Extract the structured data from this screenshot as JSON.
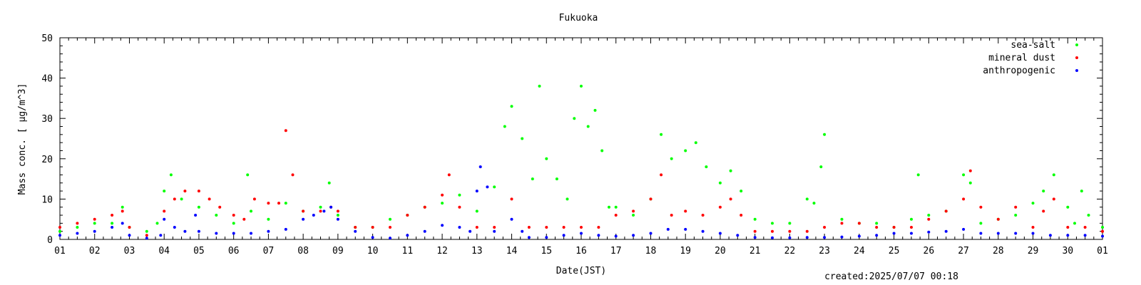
{
  "chart_data": {
    "type": "scatter",
    "title": "Fukuoka",
    "xlabel": "Date(JST)",
    "ylabel": "Mass conc. [ μg/m^3]",
    "footer": "created:2025/07/07 00:18",
    "xlim": [
      1,
      31
    ],
    "ylim": [
      0,
      50
    ],
    "grid": false,
    "legend_position": "top-right",
    "x_tick_labels": [
      "01",
      "02",
      "03",
      "04",
      "05",
      "06",
      "07",
      "08",
      "09",
      "10",
      "11",
      "12",
      "13",
      "14",
      "15",
      "16",
      "17",
      "18",
      "19",
      "20",
      "21",
      "22",
      "23",
      "24",
      "25",
      "26",
      "27",
      "28",
      "29",
      "30",
      "01"
    ],
    "y_ticks": [
      0,
      10,
      20,
      30,
      40,
      50
    ],
    "series": [
      {
        "name": "sea-salt",
        "color": "#00ff00",
        "x": [
          1.0,
          1.5,
          2.0,
          2.5,
          2.8,
          3.0,
          3.5,
          3.8,
          4.0,
          4.2,
          4.5,
          5.0,
          5.5,
          6.0,
          6.4,
          6.5,
          7.0,
          7.5,
          8.0,
          8.5,
          8.75,
          9.0,
          9.5,
          10.0,
          10.5,
          11.0,
          11.5,
          12.0,
          12.5,
          13.0,
          13.5,
          13.8,
          14.0,
          14.3,
          14.6,
          14.8,
          15.0,
          15.3,
          15.6,
          15.8,
          16.0,
          16.2,
          16.4,
          16.6,
          16.8,
          17.0,
          17.5,
          18.0,
          18.3,
          18.6,
          19.0,
          19.3,
          19.6,
          20.0,
          20.3,
          20.6,
          21.0,
          21.5,
          22.0,
          22.5,
          22.7,
          22.9,
          23.0,
          23.5,
          24.0,
          24.5,
          25.0,
          25.5,
          25.7,
          26.0,
          26.5,
          27.0,
          27.2,
          27.5,
          28.0,
          28.5,
          29.0,
          29.3,
          29.6,
          30.0,
          30.2,
          30.4,
          30.6,
          31.0
        ],
        "y": [
          2,
          3,
          4,
          4,
          8,
          3,
          2,
          4,
          12,
          16,
          10,
          8,
          6,
          4,
          16,
          7,
          5,
          9,
          7,
          8,
          14,
          6,
          3,
          3,
          5,
          6,
          8,
          9,
          11,
          7,
          13,
          28,
          33,
          25,
          15,
          38,
          20,
          15,
          10,
          30,
          38,
          28,
          32,
          22,
          8,
          8,
          6,
          10,
          26,
          20,
          22,
          24,
          18,
          14,
          17,
          12,
          5,
          4,
          4,
          10,
          9,
          18,
          26,
          5,
          4,
          4,
          3,
          5,
          16,
          6,
          7,
          16,
          14,
          4,
          5,
          6,
          9,
          12,
          16,
          8,
          4,
          12,
          6,
          3
        ]
      },
      {
        "name": "mineral dust",
        "color": "#ff0000",
        "x": [
          1.0,
          1.5,
          2.0,
          2.5,
          2.8,
          3.0,
          3.5,
          4.0,
          4.3,
          4.6,
          5.0,
          5.3,
          5.6,
          6.0,
          6.3,
          6.6,
          7.0,
          7.3,
          7.5,
          7.7,
          8.0,
          8.5,
          8.8,
          9.0,
          9.5,
          10.0,
          10.5,
          11.0,
          11.5,
          12.0,
          12.2,
          12.5,
          13.0,
          13.5,
          14.0,
          14.5,
          15.0,
          15.5,
          16.0,
          16.5,
          17.0,
          17.5,
          18.0,
          18.3,
          18.6,
          19.0,
          19.5,
          20.0,
          20.3,
          20.6,
          21.0,
          21.5,
          22.0,
          22.5,
          23.0,
          23.5,
          24.0,
          24.5,
          25.0,
          25.5,
          26.0,
          26.5,
          27.0,
          27.2,
          27.5,
          28.0,
          28.5,
          29.0,
          29.3,
          29.6,
          30.0,
          30.5,
          31.0
        ],
        "y": [
          3,
          4,
          5,
          6,
          7,
          3,
          1,
          7,
          10,
          12,
          12,
          10,
          8,
          6,
          5,
          10,
          9,
          9,
          27,
          16,
          7,
          7,
          8,
          7,
          3,
          3,
          3,
          6,
          8,
          11,
          16,
          8,
          3,
          3,
          10,
          3,
          3,
          3,
          3,
          3,
          6,
          7,
          10,
          16,
          6,
          7,
          6,
          8,
          10,
          6,
          2,
          2,
          2,
          2,
          3,
          4,
          4,
          3,
          3,
          3,
          5,
          7,
          10,
          17,
          8,
          5,
          8,
          3,
          7,
          10,
          3,
          3,
          2
        ]
      },
      {
        "name": "anthropogenic",
        "color": "#0000ff",
        "x": [
          1.0,
          1.5,
          2.0,
          2.5,
          2.8,
          3.0,
          3.5,
          3.9,
          4.0,
          4.3,
          4.6,
          4.9,
          5.0,
          5.5,
          6.0,
          6.5,
          7.0,
          7.5,
          8.0,
          8.3,
          8.6,
          8.8,
          9.0,
          9.5,
          10.0,
          10.5,
          11.0,
          11.5,
          12.0,
          12.5,
          12.8,
          13.0,
          13.1,
          13.3,
          13.5,
          14.0,
          14.3,
          14.5,
          15.0,
          15.5,
          16.0,
          16.5,
          17.0,
          17.5,
          18.0,
          18.5,
          19.0,
          19.5,
          20.0,
          20.5,
          21.0,
          21.5,
          22.0,
          22.5,
          23.0,
          23.5,
          24.0,
          24.5,
          25.0,
          25.5,
          26.0,
          26.5,
          27.0,
          27.5,
          28.0,
          28.5,
          29.0,
          29.5,
          30.0,
          30.5,
          31.0
        ],
        "y": [
          1,
          1.5,
          2,
          3,
          4,
          1,
          0.3,
          1,
          5,
          3,
          2,
          6,
          2,
          1.5,
          1.5,
          1.5,
          2,
          2.5,
          5,
          6,
          7,
          8,
          5,
          2,
          0.5,
          0.3,
          1,
          2,
          3.5,
          3,
          2,
          12,
          18,
          13,
          2,
          5,
          2,
          0.5,
          0.5,
          1,
          1.5,
          1,
          0.8,
          1,
          1.5,
          2.5,
          2.5,
          2,
          1.5,
          1,
          0.5,
          0.4,
          0.4,
          0.5,
          0.5,
          0.6,
          0.8,
          1,
          1.5,
          1.5,
          1.8,
          2,
          2.5,
          1.5,
          1.5,
          1.5,
          1.5,
          1,
          1,
          1,
          0.8
        ]
      }
    ]
  }
}
